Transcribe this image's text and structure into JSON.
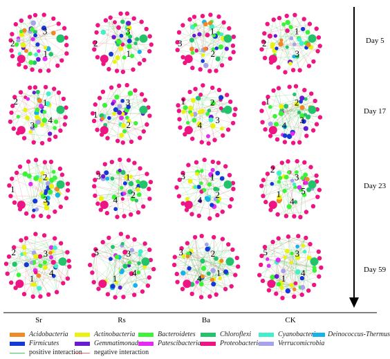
{
  "days": [
    "Day 5",
    "Day 17",
    "Day 23",
    "Day 59"
  ],
  "treatments": [
    "Sr",
    "Rs",
    "Ba",
    "CK"
  ],
  "legend": {
    "phyla": [
      {
        "name": "Acidobacteria",
        "color": "#f08a24"
      },
      {
        "name": "Actinobacteria",
        "color": "#e9f30f"
      },
      {
        "name": "Bacteroidetes",
        "color": "#3ef23a"
      },
      {
        "name": "Chloroflexi",
        "color": "#22c36b"
      },
      {
        "name": "Cyanobacteria",
        "color": "#3ff0c8"
      },
      {
        "name": "Deinococcus-Thermus",
        "color": "#14b3e8"
      },
      {
        "name": "Firmicutes",
        "color": "#1638d6"
      },
      {
        "name": "Gemmatimonadetes",
        "color": "#6a1ad0"
      },
      {
        "name": "Patescibacteria",
        "color": "#e22cf0"
      },
      {
        "name": "Proteobacteria",
        "color": "#ee1583"
      },
      {
        "name": "Verrucomicrobia",
        "color": "#a7a2ec"
      }
    ],
    "interactions": [
      {
        "name": "positive interaction",
        "color": "#3ccf5a"
      },
      {
        "name": "negative interaction",
        "color": "#e86a7a"
      }
    ]
  },
  "module_labels": [
    [
      "3",
      "1",
      "2"
    ],
    [
      "3",
      "1",
      "2"
    ],
    [
      "1",
      "2",
      "3"
    ],
    [
      "1",
      "3",
      "2"
    ],
    [
      "1",
      "4",
      "3",
      "2"
    ],
    [
      "3",
      "2",
      "1"
    ],
    [
      "2",
      "3",
      "4",
      "1"
    ],
    [
      "2",
      "3",
      "4",
      "1"
    ],
    [
      "2",
      "3",
      "1"
    ],
    [
      "1",
      "2",
      "4",
      "3"
    ],
    [
      "1",
      "2",
      "4",
      "3"
    ],
    [
      "3",
      "5",
      "4",
      "1",
      "2"
    ],
    [
      "3",
      "4",
      "1",
      "2"
    ],
    [
      "3",
      "4",
      "1",
      "5"
    ],
    [
      "2",
      "1",
      "4",
      "3"
    ],
    [
      "3",
      "4",
      "1",
      "5"
    ]
  ]
}
